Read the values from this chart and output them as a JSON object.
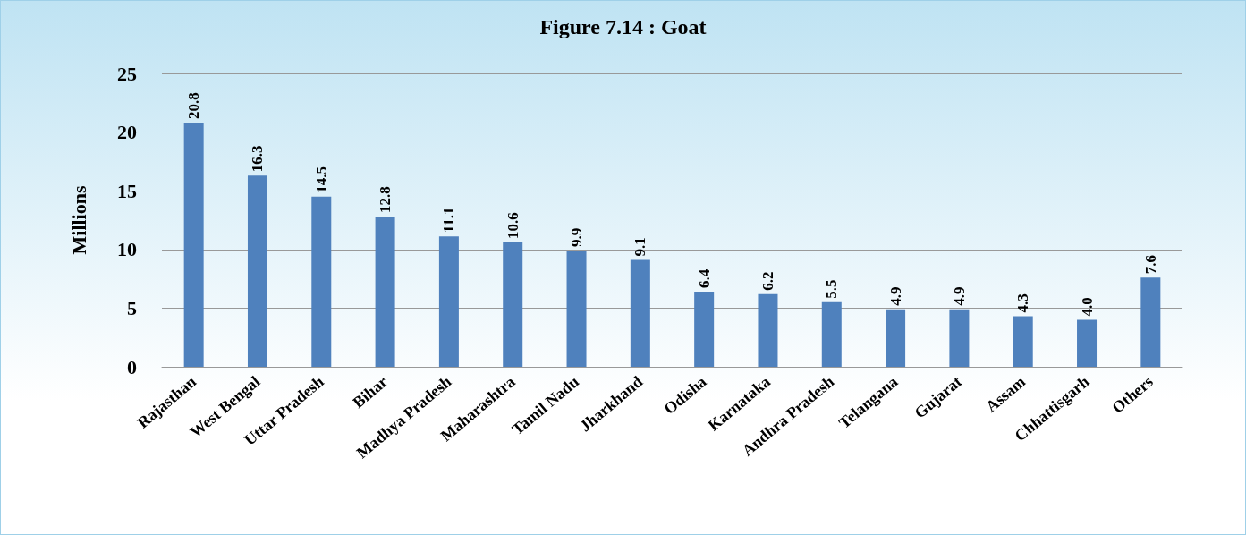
{
  "chart_data": {
    "type": "bar",
    "title": "Figure 7.14 : Goat",
    "ylabel": "Millions",
    "categories": [
      "Rajasthan",
      "West Bengal",
      "Uttar Pradesh",
      "Bihar",
      "Madhya Pradesh",
      "Maharashtra",
      "Tamil Nadu",
      "Jharkhand",
      "Odisha",
      "Karnataka",
      "Andhra Pradesh",
      "Telangana",
      "Gujarat",
      "Assam",
      "Chhattisgarh",
      "Others"
    ],
    "values": [
      20.8,
      16.3,
      14.5,
      12.8,
      11.1,
      10.6,
      9.9,
      9.1,
      6.4,
      6.2,
      5.5,
      4.9,
      4.9,
      4.3,
      4.0,
      7.6
    ],
    "value_labels": [
      "20.8",
      "16.3",
      "14.5",
      "12.8",
      "11.1",
      "10.6",
      "9.9",
      "9.1",
      "6.4",
      "6.2",
      "5.5",
      "4.9",
      "4.9",
      "4.3",
      "4.0",
      "7.6"
    ],
    "color": "#4f81bd",
    "ylim": [
      0,
      25
    ],
    "yticks": [
      0,
      5,
      10,
      15,
      20,
      25
    ],
    "grid": "y"
  }
}
